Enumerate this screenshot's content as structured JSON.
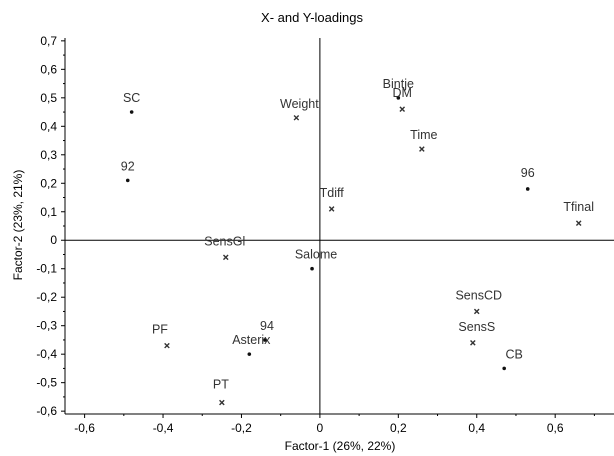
{
  "chart_data": {
    "type": "scatter",
    "title": "X- and Y-loadings",
    "xlabel": "Factor-1 (26%, 22%)",
    "ylabel": "Factor-2 (23%, 21%)",
    "xlim": [
      -0.65,
      0.75
    ],
    "ylim": [
      -0.61,
      0.71
    ],
    "xticks": [
      -0.6,
      -0.4,
      -0.2,
      0,
      0.2,
      0.4,
      0.6
    ],
    "xtick_labels": [
      "-0,6",
      "-0,4",
      "-0,2",
      "0",
      "0,2",
      "0,4",
      "0,6"
    ],
    "yticks": [
      0.7,
      0.6,
      0.5,
      0.4,
      0.3,
      0.2,
      0.1,
      0,
      -0.1,
      -0.2,
      -0.3,
      -0.4,
      -0.5,
      -0.6
    ],
    "ytick_labels": [
      "0,7",
      "0,6",
      "0,5",
      "0,4",
      "0,3",
      "0,2",
      "0,1",
      "0",
      "-0,1",
      "-0,2",
      "-0,3",
      "-0,4",
      "-0,5",
      "-0,6"
    ],
    "grid": false,
    "series": [
      {
        "marker": "dot",
        "points": [
          {
            "label": "SC",
            "x": -0.48,
            "y": 0.45
          },
          {
            "label": "92",
            "x": -0.49,
            "y": 0.21
          },
          {
            "label": "Bintje",
            "x": 0.2,
            "y": 0.5
          },
          {
            "label": "96",
            "x": 0.53,
            "y": 0.18
          },
          {
            "label": "Salome",
            "x": -0.02,
            "y": -0.1
          },
          {
            "label": "94",
            "x": -0.14,
            "y": -0.35
          },
          {
            "label": "Asterix",
            "x": -0.18,
            "y": -0.4
          },
          {
            "label": "CB",
            "x": 0.47,
            "y": -0.45
          }
        ]
      },
      {
        "marker": "cross",
        "points": [
          {
            "label": "Weight",
            "x": -0.06,
            "y": 0.43
          },
          {
            "label": "DM",
            "x": 0.21,
            "y": 0.46
          },
          {
            "label": "Time",
            "x": 0.26,
            "y": 0.32
          },
          {
            "label": "Tdiff",
            "x": 0.03,
            "y": 0.11
          },
          {
            "label": "Tfinal",
            "x": 0.66,
            "y": 0.06
          },
          {
            "label": "SensGl",
            "x": -0.24,
            "y": -0.06
          },
          {
            "label": "SensCD",
            "x": 0.4,
            "y": -0.25
          },
          {
            "label": "SensS",
            "x": 0.39,
            "y": -0.36
          },
          {
            "label": "PF",
            "x": -0.39,
            "y": -0.37
          },
          {
            "label": "PT",
            "x": -0.25,
            "y": -0.57
          }
        ]
      }
    ]
  }
}
